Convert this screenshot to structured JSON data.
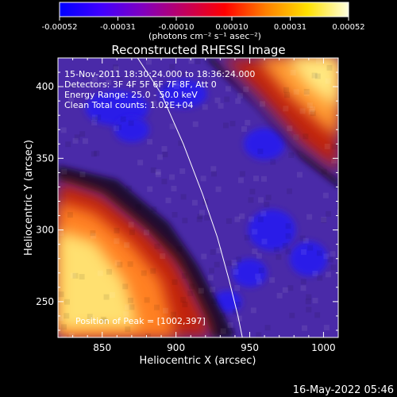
{
  "chart_data": {
    "type": "heatmap",
    "title": "Reconstructed RHESSI Image",
    "xlabel": "Heliocentric X (arcsec)",
    "ylabel": "Heliocentric Y (arcsec)",
    "xlim": [
      820,
      1010
    ],
    "ylim": [
      225,
      420
    ],
    "x_ticks": [
      850,
      900,
      950,
      1000
    ],
    "y_ticks": [
      250,
      300,
      350,
      400
    ],
    "x_tick_labels": [
      "850",
      "900",
      "950",
      "1000"
    ],
    "y_tick_labels": [
      "250",
      "300",
      "350",
      "400"
    ],
    "colorbar": {
      "ticks": [
        -0.00052,
        -0.00031,
        -0.0001,
        0.0001,
        0.00031,
        0.00052
      ],
      "tick_labels": [
        "-0.00052",
        "-0.00031",
        "-0.00010",
        "0.00010",
        "0.00031",
        "0.00052"
      ],
      "range": [
        -0.00052,
        0.00052
      ],
      "units_label": "(photons cm⁻² s⁻¹ asec⁻²)",
      "colors": [
        "#0000ff",
        "#4000ff",
        "#8000c0",
        "#c00060",
        "#ff0000",
        "#ff8000",
        "#ffe000",
        "#ffffe0"
      ]
    },
    "annotations": [
      "15-Nov-2011 18:30:24.000 to 18:36:24.000",
      "Detectors: 3F 4F 5F 6F 7F 8F, Att 0",
      "Energy Range: 25.0 - 50.0 keV",
      "Clean    Total counts: 1.02E+04"
    ],
    "peak_label": "Position of Peak = [1002,397]",
    "peak": [
      1002,
      397
    ],
    "limb_curve": [
      [
        874,
        420
      ],
      [
        890,
        395
      ],
      [
        905,
        360
      ],
      [
        918,
        325
      ],
      [
        928,
        295
      ],
      [
        936,
        265
      ],
      [
        942,
        240
      ],
      [
        945,
        225
      ]
    ],
    "regions": {
      "lower_left_bright": [
        [
          820,
          225
        ],
        [
          820,
          335
        ],
        [
          850,
          325
        ],
        [
          880,
          300
        ],
        [
          900,
          280
        ],
        [
          920,
          240
        ],
        [
          925,
          225
        ]
      ],
      "upper_right_bright": [
        [
          930,
          420
        ],
        [
          955,
          395
        ],
        [
          985,
          360
        ],
        [
          1010,
          340
        ],
        [
          1010,
          420
        ]
      ]
    }
  },
  "footer": {
    "timestamp": "16-May-2022 05:46"
  }
}
